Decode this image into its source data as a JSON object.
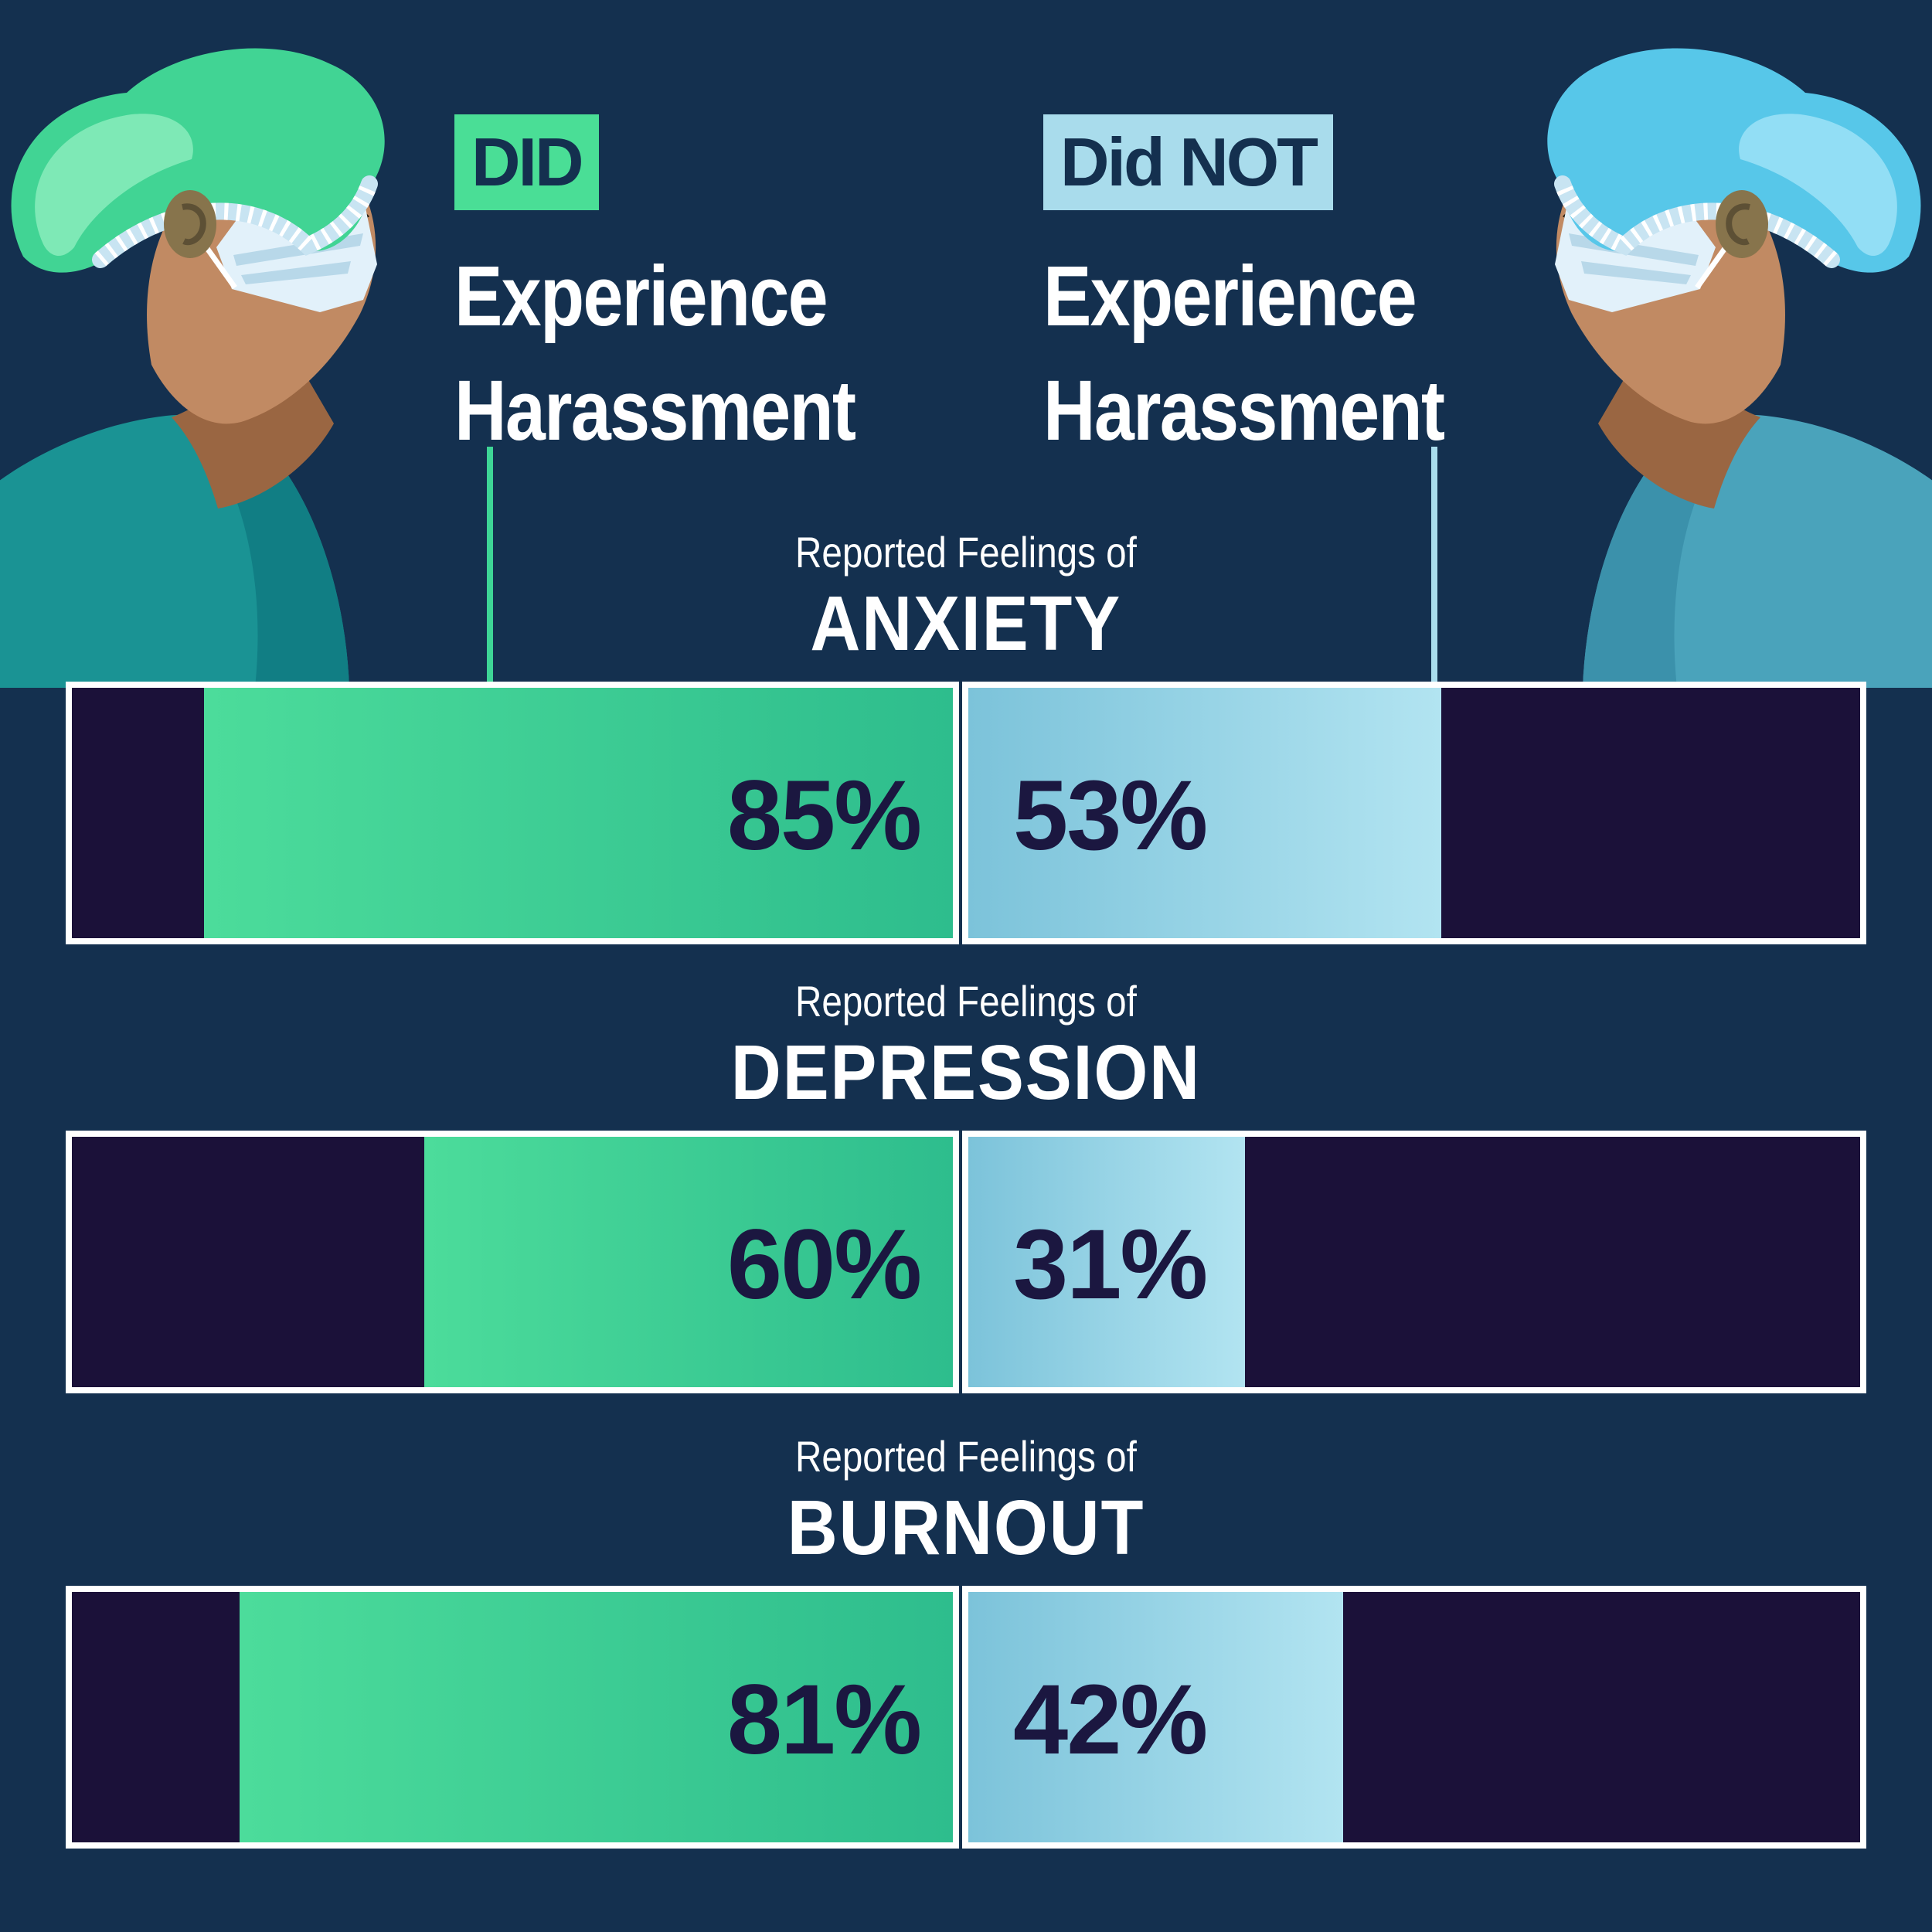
{
  "page": {
    "background_color": "#14304f"
  },
  "legend": {
    "did": {
      "chip": "DID",
      "line1": "Experience",
      "line2": "Harassment",
      "chip_color": "#4ade96"
    },
    "did_not": {
      "chip": "Did NOT",
      "line1": "Experience",
      "line2": "Harassment",
      "chip_color": "#a9dcec"
    }
  },
  "sections": [
    {
      "eyebrow": "Reported Feelings of",
      "title": "ANXIETY",
      "did": {
        "label": "85%",
        "pct": 85
      },
      "did_not": {
        "label": "53%",
        "pct": 53
      }
    },
    {
      "eyebrow": "Reported Feelings of",
      "title": "DEPRESSION",
      "did": {
        "label": "60%",
        "pct": 60
      },
      "did_not": {
        "label": "31%",
        "pct": 31
      }
    },
    {
      "eyebrow": "Reported Feelings of",
      "title": "BURNOUT",
      "did": {
        "label": "81%",
        "pct": 81
      },
      "did_not": {
        "label": "42%",
        "pct": 42
      }
    }
  ],
  "colors": {
    "background": "#14304f",
    "bar_border": "#ffffff",
    "bar_remainder": "#1b1139",
    "did_accent": "#4ade96",
    "did_gradient": [
      "#4cdc9b",
      "#2ebd8d"
    ],
    "did_not_accent": "#a9dcec",
    "did_not_gradient": [
      "#7cc3da",
      "#b2e4f1"
    ],
    "percent_text": "#1b1740",
    "heading_text": "#ffffff",
    "chip_text": "#14304f"
  },
  "chart_data": {
    "type": "bar",
    "orientation": "horizontal-paired",
    "eyebrow": "Reported Feelings of",
    "categories": [
      "ANXIETY",
      "DEPRESSION",
      "BURNOUT"
    ],
    "series": [
      {
        "name": "DID Experience Harassment",
        "values": [
          85,
          60,
          81
        ],
        "color_start": "#4cdc9b",
        "color_end": "#2ebd8d"
      },
      {
        "name": "Did NOT Experience Harassment",
        "values": [
          53,
          31,
          42
        ],
        "color_start": "#7cc3da",
        "color_end": "#b2e4f1"
      }
    ],
    "unit": "%",
    "value_range": [
      0,
      100
    ],
    "data_labels": [
      "85%",
      "53%",
      "60%",
      "31%",
      "81%",
      "42%"
    ],
    "grid": false,
    "legend_position": "top"
  }
}
